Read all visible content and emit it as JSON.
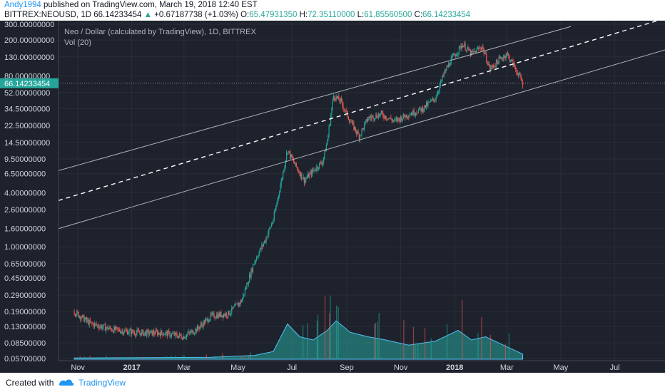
{
  "header": {
    "author": "Andy1994",
    "published": "published on TradingView.com, March 19, 2018 12:40 EST",
    "symbol": "BITTREX:NEOUSD, 1D",
    "last": "66.14233454",
    "arrow": "▲",
    "change": "+0.67187738 (+1.03%)",
    "o_label": "O:",
    "o_val": "65.47931350",
    "h_label": "H:",
    "h_val": "72.35110000",
    "l_label": "L:",
    "l_val": "61.85560500",
    "c_label": "C:",
    "c_val": "66.14233454"
  },
  "legend": {
    "title": "Neo / Dollar (calculated by TradingView), 1D, BITTREX",
    "vol": "Vol (20)"
  },
  "footer": {
    "created": "Created with",
    "brand": "TradingView"
  },
  "colors": {
    "background": "#1e222d",
    "up": "#26a69a",
    "down": "#ef5350",
    "channel": "#d1d4dc",
    "volume_area": "#26a69a"
  },
  "chart_data": {
    "type": "candlestick",
    "y_scale": "log",
    "price_labels": [
      "300.00000000",
      "200.00000000",
      "130.00000000",
      "80.00000000",
      "52.00000000",
      "34.50000000",
      "22.50000000",
      "14.50000000",
      "9.50000000",
      "6.50000000",
      "4.00000000",
      "2.60000000",
      "1.60000000",
      "1.00000000",
      "0.65000000",
      "0.45000000",
      "0.29000000",
      "0.19000000",
      "0.13000000",
      "0.08500000",
      "0.05700000"
    ],
    "price_values": [
      300,
      200,
      130,
      80,
      52,
      34.5,
      22.5,
      14.5,
      9.5,
      6.5,
      4,
      2.6,
      1.6,
      1,
      0.65,
      0.45,
      0.29,
      0.19,
      0.13,
      0.085,
      0.057
    ],
    "last_price_label": "66.14233454",
    "last_price": 66.14233454,
    "x_labels": [
      "Nov",
      "2017",
      "Mar",
      "May",
      "Jul",
      "Sep",
      "Nov",
      "2018",
      "Mar",
      "May",
      "Jul"
    ],
    "price_path": [
      [
        "2016-10-28",
        0.19
      ],
      [
        "2016-11-15",
        0.14
      ],
      [
        "2016-12-10",
        0.12
      ],
      [
        "2017-01-10",
        0.11
      ],
      [
        "2017-02-05",
        0.11
      ],
      [
        "2017-02-28",
        0.1
      ],
      [
        "2017-03-15",
        0.12
      ],
      [
        "2017-04-01",
        0.17
      ],
      [
        "2017-04-20",
        0.18
      ],
      [
        "2017-05-05",
        0.25
      ],
      [
        "2017-05-20",
        0.7
      ],
      [
        "2017-06-01",
        1.2
      ],
      [
        "2017-06-10",
        2.0
      ],
      [
        "2017-06-20",
        6.0
      ],
      [
        "2017-06-26",
        12.0
      ],
      [
        "2017-07-05",
        8.0
      ],
      [
        "2017-07-15",
        5.5
      ],
      [
        "2017-07-25",
        7.0
      ],
      [
        "2017-08-05",
        9.0
      ],
      [
        "2017-08-10",
        15.0
      ],
      [
        "2017-08-17",
        48.0
      ],
      [
        "2017-08-25",
        42.0
      ],
      [
        "2017-09-05",
        25.0
      ],
      [
        "2017-09-15",
        17.0
      ],
      [
        "2017-09-25",
        27.0
      ],
      [
        "2017-10-10",
        30.0
      ],
      [
        "2017-10-25",
        25.0
      ],
      [
        "2017-11-10",
        30.0
      ],
      [
        "2017-11-25",
        34.0
      ],
      [
        "2017-12-10",
        45.0
      ],
      [
        "2017-12-20",
        85.0
      ],
      [
        "2017-12-28",
        120.0
      ],
      [
        "2018-01-10",
        180.0
      ],
      [
        "2018-01-20",
        140.0
      ],
      [
        "2018-02-01",
        170.0
      ],
      [
        "2018-02-10",
        95.0
      ],
      [
        "2018-02-20",
        120.0
      ],
      [
        "2018-03-01",
        140.0
      ],
      [
        "2018-03-10",
        100.0
      ],
      [
        "2018-03-19",
        66.14
      ]
    ],
    "volume_profile": [
      [
        "2016-10-28",
        0.02
      ],
      [
        "2017-04-01",
        0.03
      ],
      [
        "2017-05-20",
        0.06
      ],
      [
        "2017-06-10",
        0.12
      ],
      [
        "2017-06-26",
        0.55
      ],
      [
        "2017-07-10",
        0.35
      ],
      [
        "2017-07-25",
        0.3
      ],
      [
        "2017-08-10",
        0.45
      ],
      [
        "2017-08-20",
        0.6
      ],
      [
        "2017-09-05",
        0.42
      ],
      [
        "2017-09-25",
        0.35
      ],
      [
        "2017-10-15",
        0.3
      ],
      [
        "2017-11-10",
        0.22
      ],
      [
        "2017-12-10",
        0.28
      ],
      [
        "2018-01-05",
        0.45
      ],
      [
        "2018-01-20",
        0.3
      ],
      [
        "2018-02-05",
        0.35
      ],
      [
        "2018-02-25",
        0.22
      ],
      [
        "2018-03-19",
        0.08
      ]
    ],
    "channel": {
      "upper": [
        [
          "2016-10-20",
          7.5
        ],
        [
          "2018-03-19",
          200
        ]
      ],
      "middle": [
        [
          "2016-10-20",
          3.5
        ],
        [
          "2018-07-31",
          290
        ]
      ],
      "lower": [
        [
          "2016-10-20",
          1.7
        ],
        [
          "2018-07-31",
          130
        ]
      ]
    }
  }
}
